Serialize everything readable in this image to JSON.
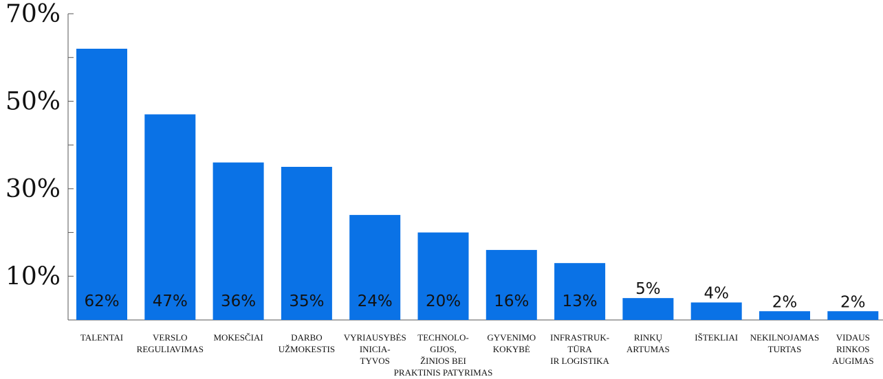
{
  "chart_data": {
    "type": "bar",
    "title": "",
    "xlabel": "",
    "ylabel": "",
    "ylim": [
      0,
      70
    ],
    "grid": false,
    "colors": {
      "bar": "#0a72e6",
      "axis": "#555555",
      "text": "#111111"
    },
    "y_tick_labels": [
      "10%",
      "30%",
      "50%",
      "70%"
    ],
    "y_tick_values": [
      10,
      30,
      50,
      70
    ],
    "categories": [
      [
        "TALENTAI"
      ],
      [
        "VERSLO",
        "REGULIAVIMAS"
      ],
      [
        "MOKESČIAI"
      ],
      [
        "DARBO",
        "UŽMOKESTIS"
      ],
      [
        "VYRIAUSYBĖS",
        "INICIA-",
        "TYVOS"
      ],
      [
        "TECHNOLO-",
        "GIJOS,",
        "ŽINIOS BEI",
        "PRAKTINIS PATYRIMAS"
      ],
      [
        "GYVENIMO",
        "KOKYBĖ"
      ],
      [
        "INFRASTRUK-",
        "TŪRA",
        "IR LOGISTIKA"
      ],
      [
        "RINKŲ",
        "ARTUMAS"
      ],
      [
        "IŠTEKLIAI"
      ],
      [
        "NEKILNOJAMAS",
        "TURTAS"
      ],
      [
        "VIDAUS",
        "RINKOS",
        "AUGIMAS"
      ]
    ],
    "values": [
      62,
      47,
      36,
      35,
      24,
      20,
      16,
      13,
      5,
      4,
      2,
      2
    ],
    "value_labels": [
      "62%",
      "47%",
      "36%",
      "35%",
      "24%",
      "20%",
      "16%",
      "13%",
      "5%",
      "4%",
      "2%",
      "2%"
    ]
  }
}
